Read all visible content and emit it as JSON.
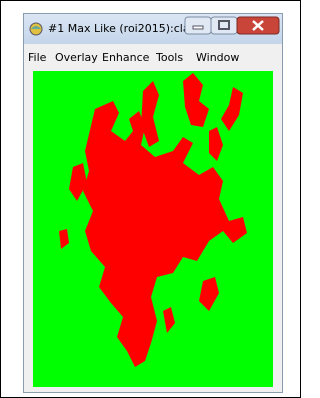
{
  "window": {
    "title": "#1 Max Like (roi2015):cla..."
  },
  "menu": {
    "items": [
      "File",
      "Overlay",
      "Enhance",
      "Tools",
      "Window"
    ]
  }
}
